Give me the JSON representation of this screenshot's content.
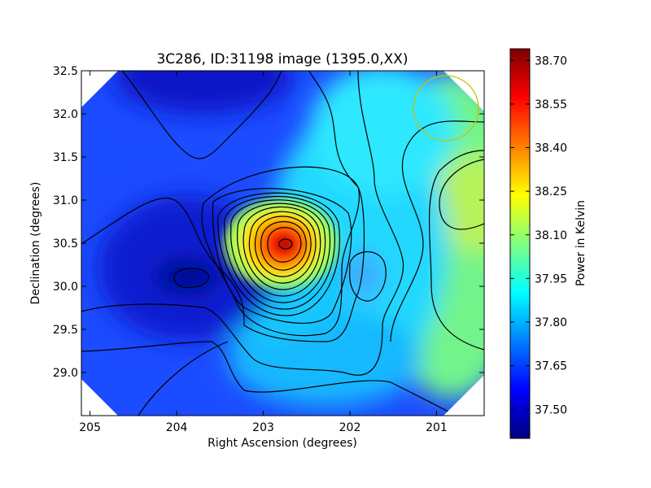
{
  "chart_data": {
    "type": "heatmap",
    "title": "3C286, ID:31198 image (1395.0,XX)",
    "xlabel": "Right Ascension (degrees)",
    "ylabel": "Declination (degrees)",
    "xlim": [
      205.1,
      200.45
    ],
    "ylim": [
      28.5,
      32.5
    ],
    "x_ticks": [
      205,
      204,
      203,
      202,
      201
    ],
    "x_tick_labels": [
      "205",
      "204",
      "203",
      "202",
      "201"
    ],
    "y_ticks": [
      29.0,
      29.5,
      30.0,
      30.5,
      31.0,
      31.5,
      32.0,
      32.5
    ],
    "y_tick_labels": [
      "29.0",
      "29.5",
      "30.0",
      "30.5",
      "31.0",
      "31.5",
      "32.0",
      "32.5"
    ],
    "colorbar": {
      "label": "Power in Kelvin",
      "colormap": "jet",
      "range": [
        37.4,
        38.74
      ],
      "ticks": [
        37.5,
        37.65,
        37.8,
        37.95,
        38.1,
        38.25,
        38.4,
        38.55,
        38.7
      ],
      "tick_labels": [
        "37.50",
        "37.65",
        "37.80",
        "37.95",
        "38.10",
        "38.25",
        "38.40",
        "38.55",
        "38.70"
      ]
    },
    "field_features": [
      {
        "kind": "maximum",
        "ra": 202.75,
        "dec": 30.5,
        "value": 38.7
      },
      {
        "kind": "minimum",
        "ra": 203.85,
        "dec": 30.1,
        "value": 37.42
      },
      {
        "kind": "local_bump",
        "ra": 201.8,
        "dec": 30.1,
        "value": 37.8
      },
      {
        "kind": "high_region",
        "ra": 200.6,
        "dec": 30.95,
        "value": 38.15
      },
      {
        "kind": "low_region",
        "ra": 203.2,
        "dec": 32.5,
        "value": 37.45
      }
    ],
    "beam_circle": {
      "ra": 200.9,
      "dec": 32.05,
      "radius_deg": 0.37,
      "color": "#c8c000"
    },
    "contour_color": "#000000",
    "colors": {
      "background": "#ffffff",
      "axes_edge": "#000000"
    }
  }
}
